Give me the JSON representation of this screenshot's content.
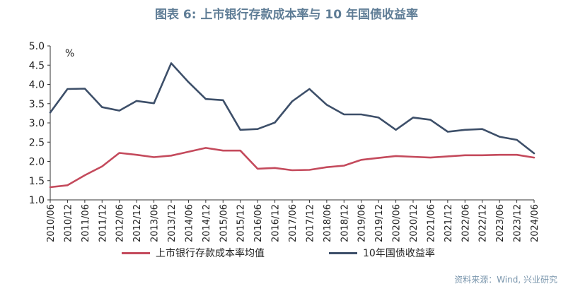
{
  "colors": {
    "title": "#5f7d96",
    "series1": "#c44a5c",
    "series2": "#3d4f69",
    "source": "#7a96ad",
    "axis": "#333333"
  },
  "chart_data": {
    "type": "line",
    "title": "图表 6:  上市银行存款成本率与 10 年国债收益率",
    "ylabel": "%",
    "ylim": [
      1.0,
      5.0
    ],
    "yticks": [
      "1.0",
      "1.5",
      "2.0",
      "2.5",
      "3.0",
      "3.5",
      "4.0",
      "4.5",
      "5.0"
    ],
    "x": [
      "2010/06",
      "2010/12",
      "2011/06",
      "2011/12",
      "2012/06",
      "2012/12",
      "2013/06",
      "2013/12",
      "2014/06",
      "2014/12",
      "2015/06",
      "2015/12",
      "2016/06",
      "2016/12",
      "2017/06",
      "2017/12",
      "2018/06",
      "2018/12",
      "2019/06",
      "2019/12",
      "2020/06",
      "2020/12",
      "2021/06",
      "2021/12",
      "2022/06",
      "2022/12",
      "2023/06",
      "2023/12",
      "2024/06"
    ],
    "series": [
      {
        "name": "上市银行存款成本率均值",
        "values": [
          1.33,
          1.38,
          1.64,
          1.87,
          2.22,
          2.17,
          2.11,
          2.15,
          2.25,
          2.35,
          2.28,
          2.28,
          1.81,
          1.83,
          1.77,
          1.78,
          1.85,
          1.89,
          2.04,
          2.09,
          2.14,
          2.12,
          2.1,
          2.13,
          2.16,
          2.16,
          2.17,
          2.17,
          2.1
        ]
      },
      {
        "name": "10年国债收益率",
        "values": [
          3.27,
          3.88,
          3.89,
          3.41,
          3.32,
          3.57,
          3.51,
          4.55,
          4.06,
          3.62,
          3.59,
          2.82,
          2.84,
          3.01,
          3.56,
          3.88,
          3.47,
          3.22,
          3.22,
          3.14,
          2.82,
          3.14,
          3.08,
          2.77,
          2.82,
          2.84,
          2.64,
          2.56,
          2.21
        ]
      }
    ]
  },
  "source": "资料来源：Wind, 兴业研究"
}
